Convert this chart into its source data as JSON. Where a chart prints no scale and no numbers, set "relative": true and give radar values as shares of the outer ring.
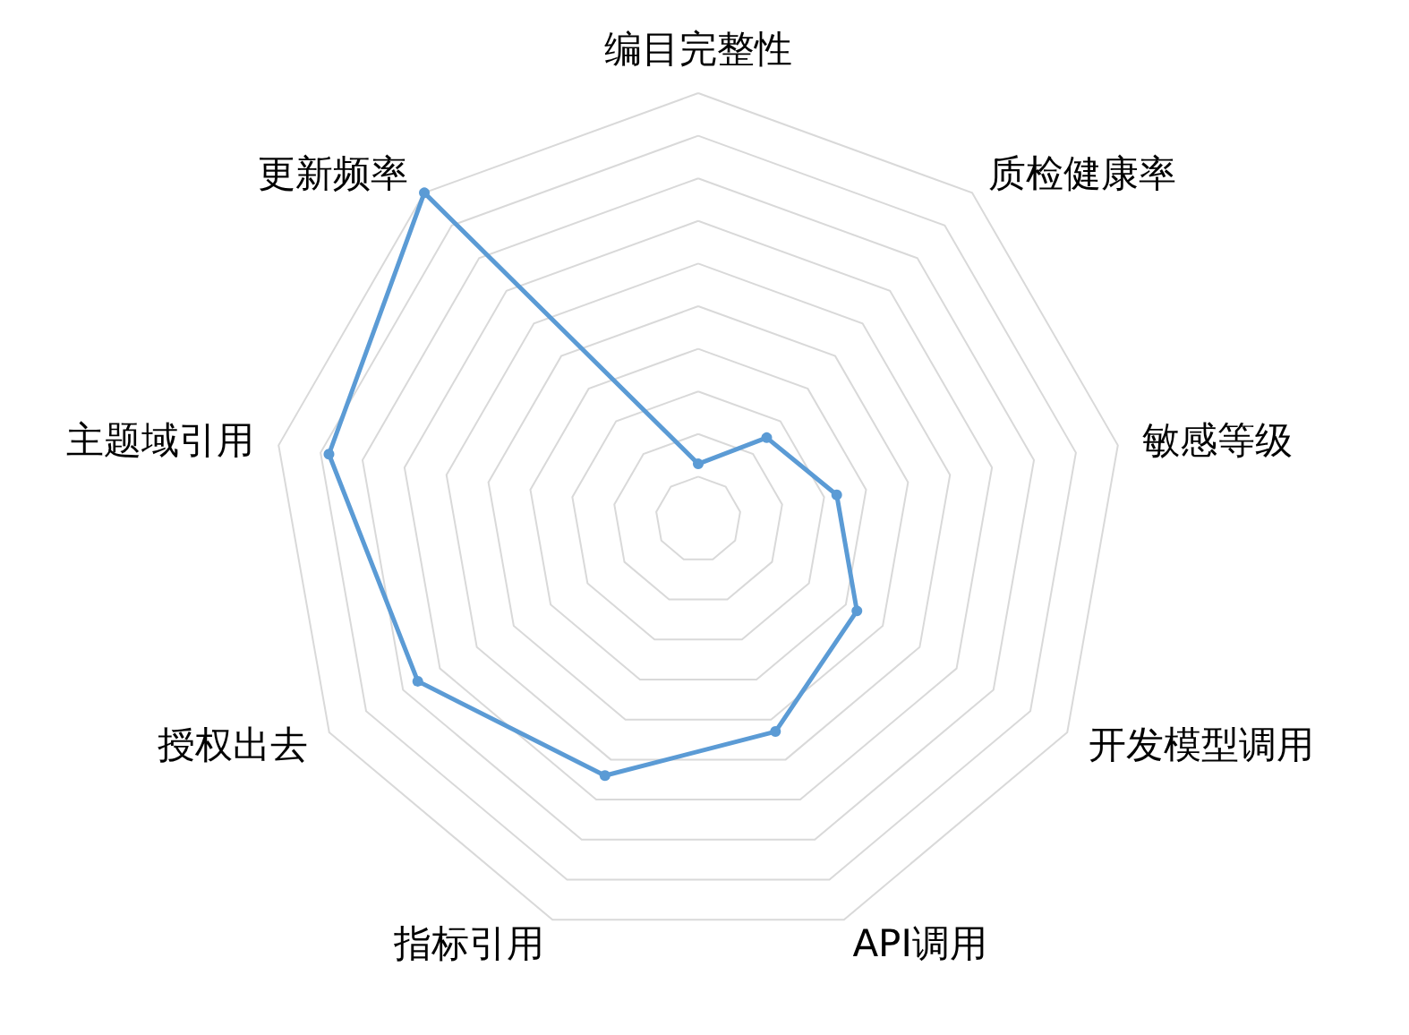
{
  "chart_data": {
    "type": "radar",
    "relative": true,
    "categories": [
      "编目完整性",
      "质检健康率",
      "敏感等级",
      "开发模型调用",
      "API调用",
      "指标引用",
      "授权出去",
      "主题域引用",
      "更新频率"
    ],
    "series": [
      {
        "color": "#5b9bd5",
        "values": [
          0.13,
          0.25,
          0.33,
          0.43,
          0.53,
          0.64,
          0.76,
          0.88,
          1.0
        ]
      }
    ],
    "marker": "circle",
    "grid": true
  }
}
